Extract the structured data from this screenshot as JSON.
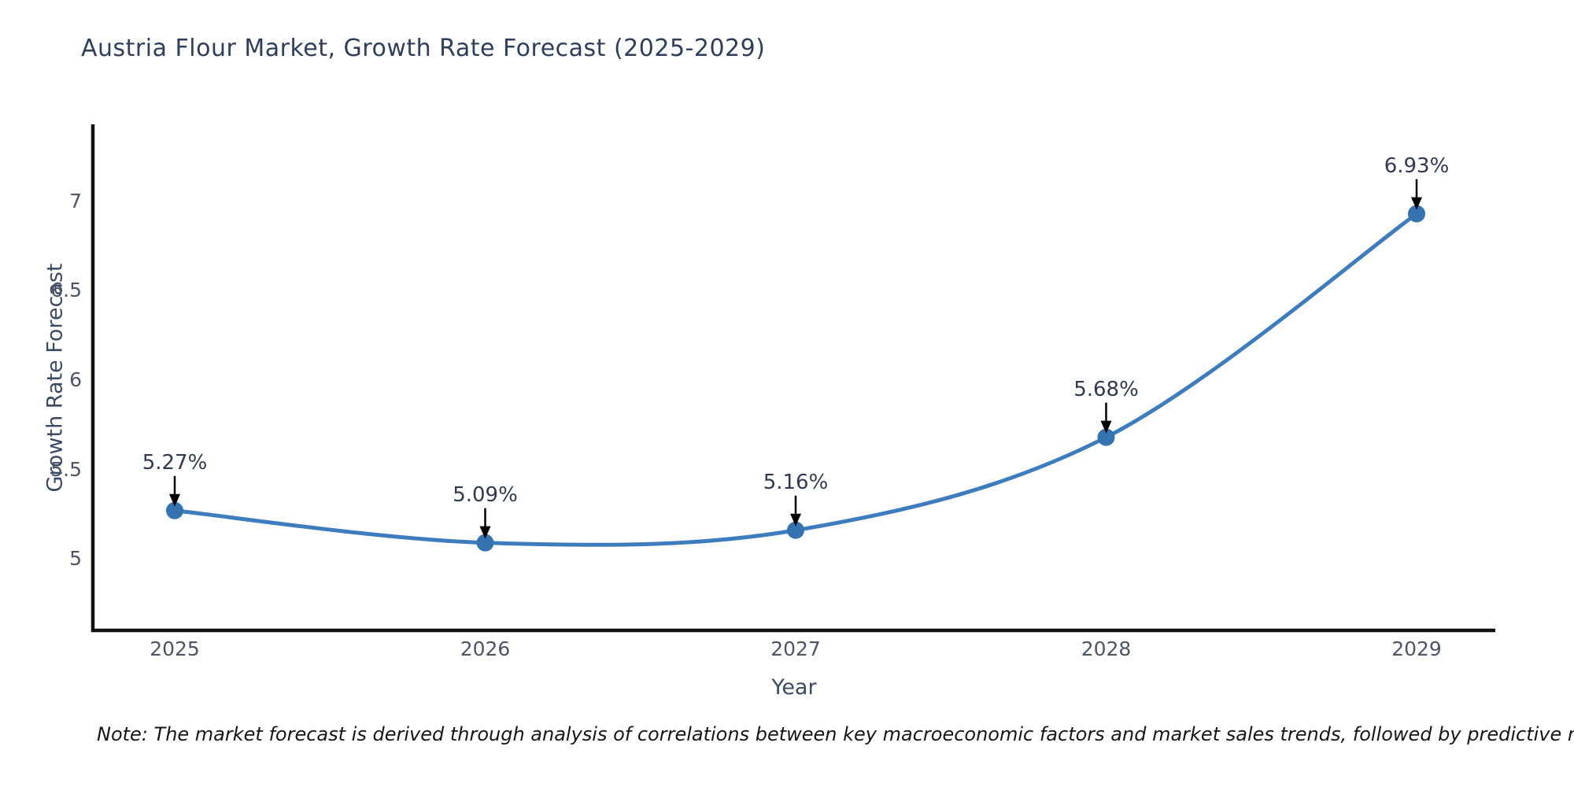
{
  "title": "Austria Flour Market, Growth Rate Forecast (2025-2029)",
  "note": "Note: The market forecast is derived through analysis of correlations between key macroeconomic factors and market sales trends, followed by predictive modeling to project future sales",
  "chart_data": {
    "type": "line",
    "title": "Austria Flour Market, Growth Rate Forecast (2025-2029)",
    "xlabel": "Year",
    "ylabel": "Growth Rate Forecast",
    "x": [
      "2025",
      "2026",
      "2027",
      "2028",
      "2029"
    ],
    "series": [
      {
        "name": "Growth Rate Forecast",
        "values": [
          5.27,
          5.09,
          5.16,
          5.68,
          6.93
        ],
        "point_labels": [
          "5.27%",
          "5.09%",
          "5.16%",
          "5.68%",
          "6.93%"
        ]
      }
    ],
    "yticks": [
      5,
      5.5,
      6,
      6.5,
      7
    ],
    "ylim": [
      4.6,
      7.43
    ],
    "grid": false,
    "legend": "none",
    "line_shape": "spline",
    "colors": {
      "line": "#3e7dbd",
      "marker": "#3572b0",
      "axis": "#111111",
      "arrow": "#000000",
      "tick_text": "#4c5668",
      "title_text": "#2e3f5c"
    }
  }
}
